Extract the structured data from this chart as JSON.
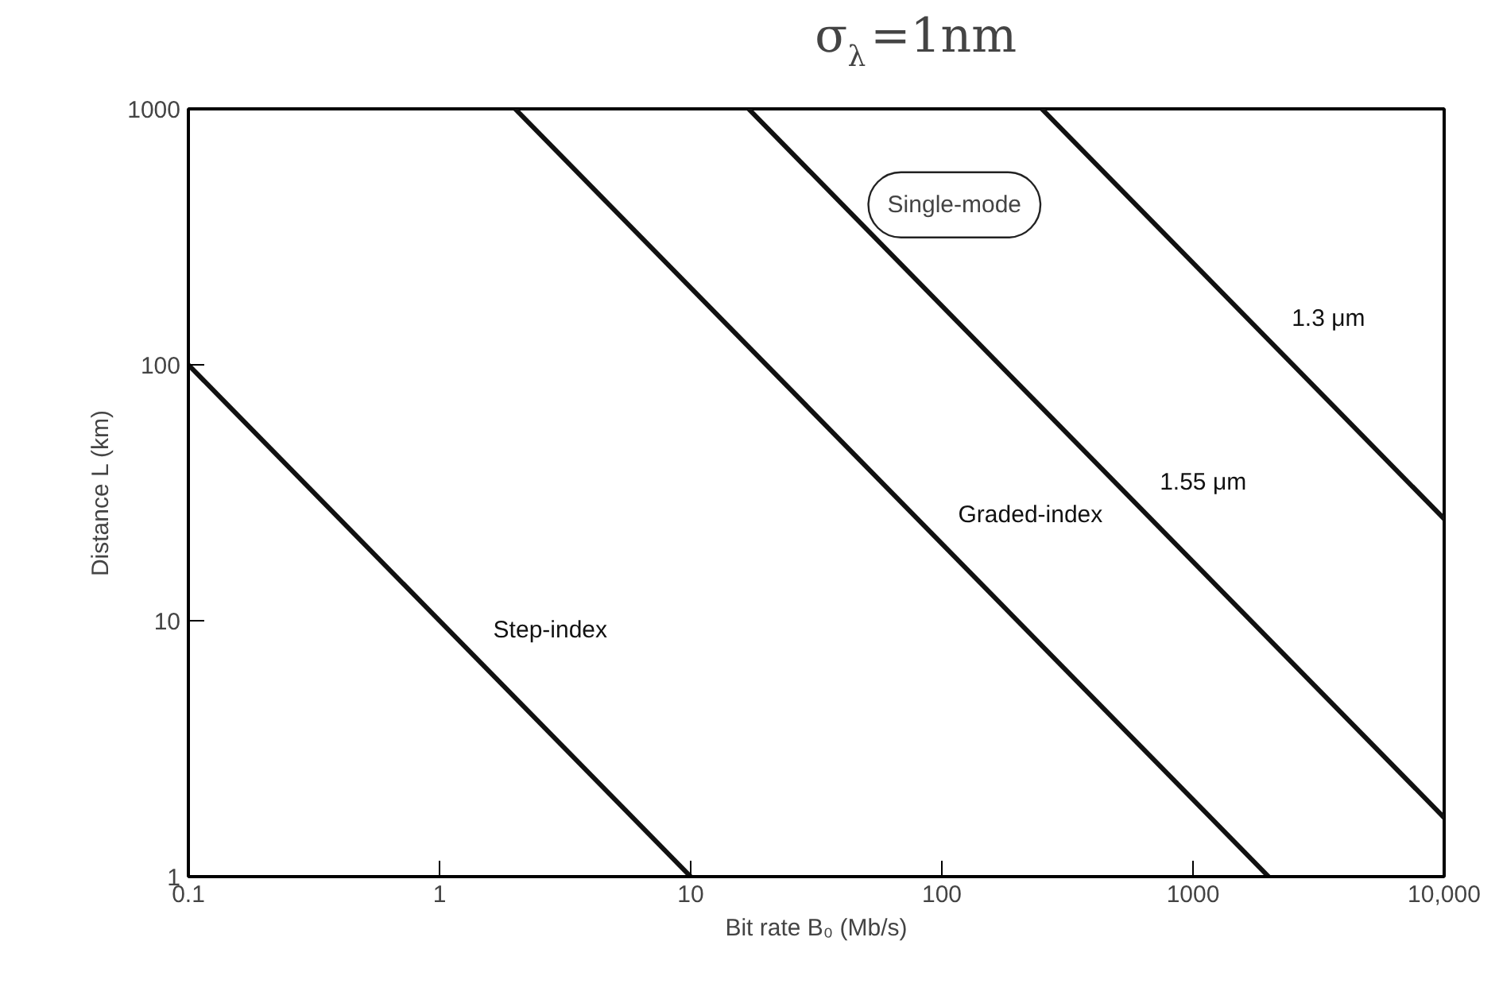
{
  "chart_data": {
    "type": "line",
    "title": "σ$_{λ}$=1nm",
    "xlabel": "Bit rate B₀ (Mb/s)",
    "ylabel": "Distance L (km)",
    "log": "xy",
    "grid": false,
    "marker": "none",
    "line_style": "solid",
    "xlim": [
      0.1,
      10000
    ],
    "ylim": [
      1,
      1000
    ],
    "xticks": [
      0.1,
      1,
      10,
      100,
      1000,
      {
        "value": 10000,
        "label": "10,000"
      }
    ],
    "yticks": [
      1,
      10,
      100,
      1000
    ],
    "series": [
      {
        "name": "Step-index",
        "color": "#111111",
        "x": [
          0.1,
          10
        ],
        "values": [
          100,
          1
        ]
      },
      {
        "name": "Graded-index",
        "color": "#111111",
        "x": [
          2,
          2000
        ],
        "values": [
          1000,
          1
        ]
      },
      {
        "name": "1.55 μm",
        "color": "#111111",
        "x": [
          17,
          10000
        ],
        "values": [
          1000,
          1.7
        ]
      },
      {
        "name": "1.3 μm",
        "color": "#111111",
        "x": [
          250,
          10000
        ],
        "values": [
          1000,
          25
        ]
      }
    ],
    "annotations": [
      "Single-mode"
    ]
  }
}
